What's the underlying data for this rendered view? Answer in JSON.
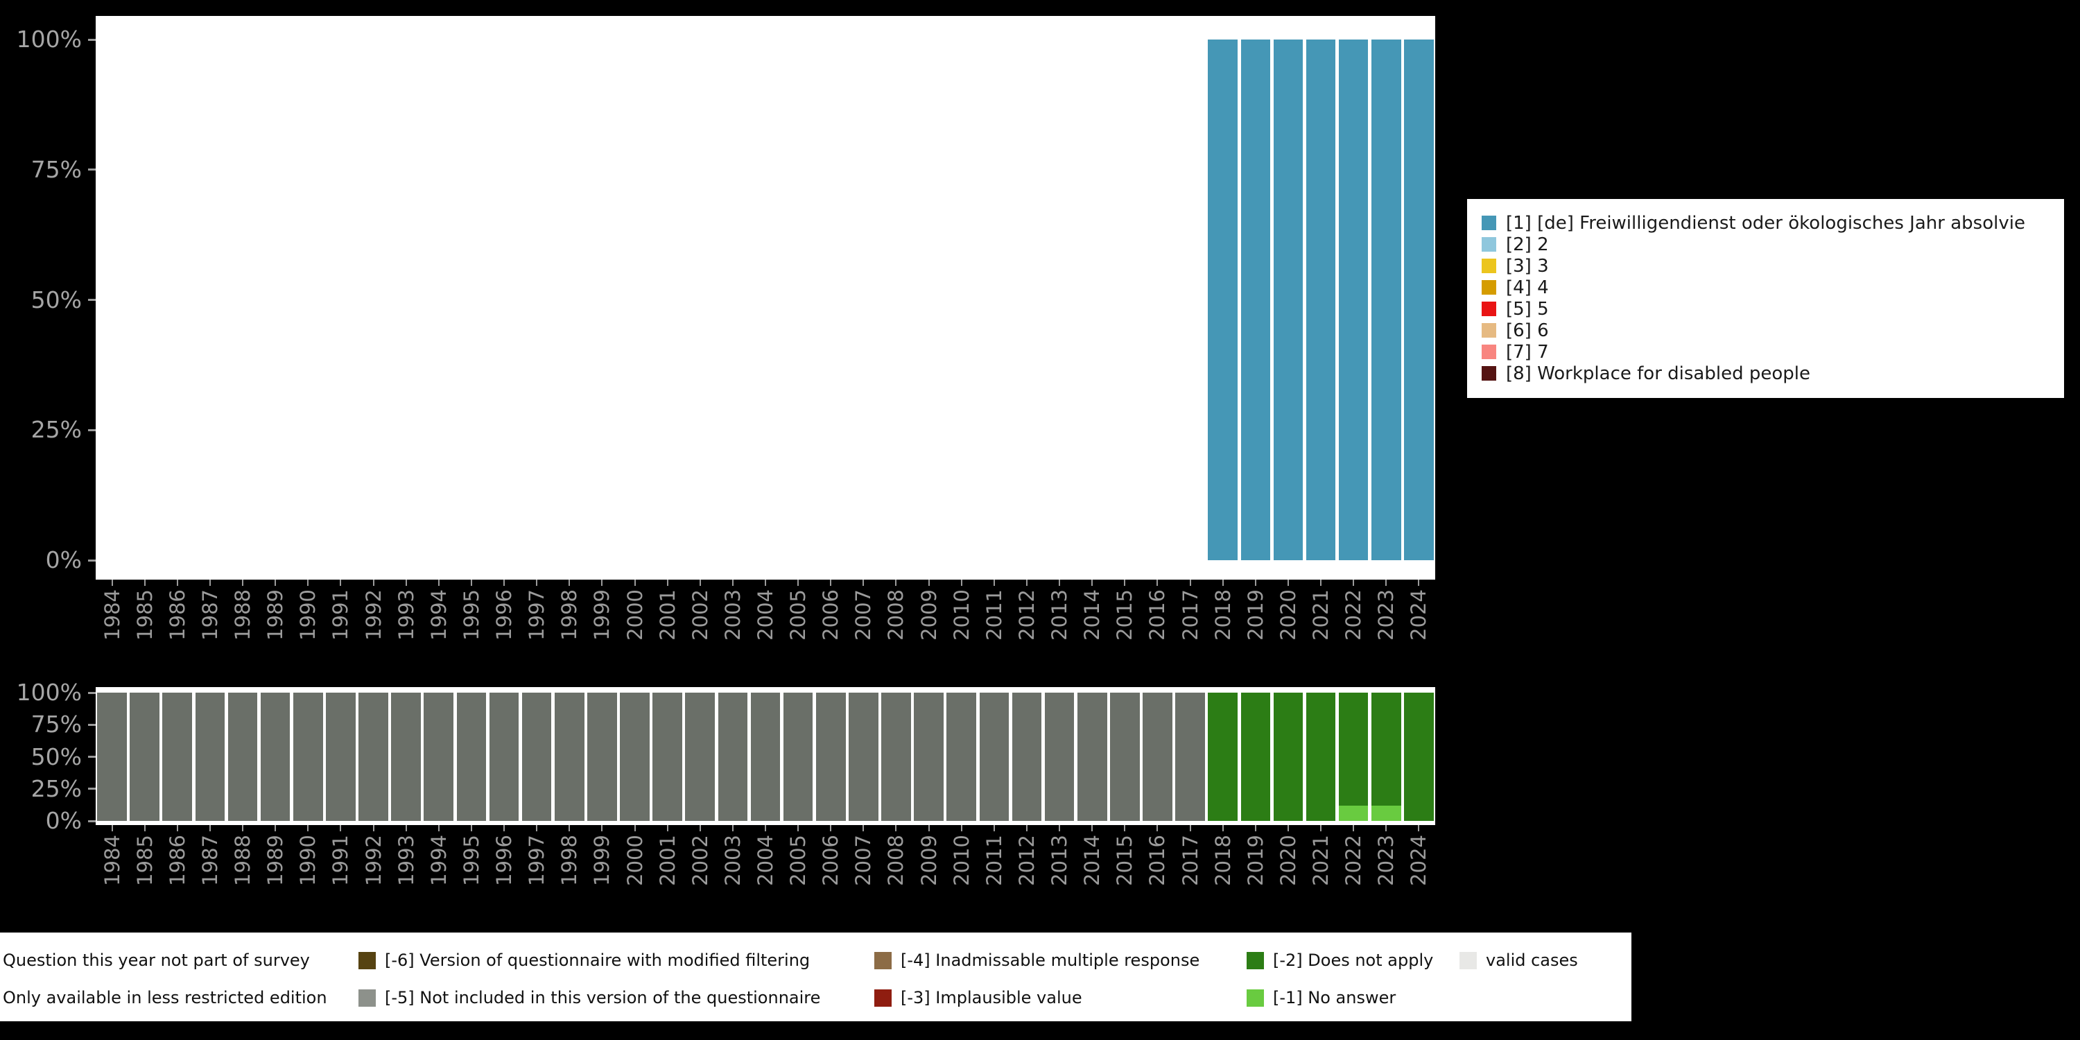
{
  "app": {
    "background": "#000000"
  },
  "axes": {
    "tick_color": "#9b9b9b",
    "y_label_color": "#a6a6a6",
    "x_label_color": "#9b9b9b"
  },
  "chart_data": [
    {
      "name": "frequencies-by-year",
      "type": "bar",
      "stacked": true,
      "grid": false,
      "legend_position": "right",
      "ylim": [
        0,
        100
      ],
      "y_ticks": [
        0,
        25,
        50,
        75,
        100
      ],
      "y_tick_labels": [
        "0%",
        "25%",
        "50%",
        "75%",
        "100%"
      ],
      "x": [
        "1984",
        "1985",
        "1986",
        "1987",
        "1988",
        "1989",
        "1990",
        "1991",
        "1992",
        "1993",
        "1994",
        "1995",
        "1996",
        "1997",
        "1998",
        "1999",
        "2000",
        "2001",
        "2002",
        "2003",
        "2004",
        "2005",
        "2006",
        "2007",
        "2008",
        "2009",
        "2010",
        "2011",
        "2012",
        "2013",
        "2014",
        "2015",
        "2016",
        "2017",
        "2018",
        "2019",
        "2020",
        "2021",
        "2022",
        "2023",
        "2024"
      ],
      "series": [
        {
          "name": "[1] [de] Freiwilligendienst oder ökologisches Jahr absolvie",
          "color": "#4597b6",
          "values": [
            0,
            0,
            0,
            0,
            0,
            0,
            0,
            0,
            0,
            0,
            0,
            0,
            0,
            0,
            0,
            0,
            0,
            0,
            0,
            0,
            0,
            0,
            0,
            0,
            0,
            0,
            0,
            0,
            0,
            0,
            0,
            0,
            0,
            0,
            100,
            100,
            100,
            100,
            100,
            100,
            100
          ]
        },
        {
          "name": "[2] 2",
          "color": "#8fc7dd",
          "values": []
        },
        {
          "name": "[3] 3",
          "color": "#ecc51e",
          "values": []
        },
        {
          "name": "[4] 4",
          "color": "#d59c00",
          "values": []
        },
        {
          "name": "[5] 5",
          "color": "#e91414",
          "values": []
        },
        {
          "name": "[6] 6",
          "color": "#e6ba82",
          "values": []
        },
        {
          "name": "[7] 7",
          "color": "#f8857f",
          "values": []
        },
        {
          "name": "[8] Workplace for disabled people",
          "color": "#551413",
          "values": []
        }
      ]
    },
    {
      "name": "missings-by-year",
      "type": "bar",
      "stacked": true,
      "grid": false,
      "legend_position": "bottom-external",
      "ylim": [
        0,
        100
      ],
      "y_ticks": [
        0,
        25,
        50,
        75,
        100
      ],
      "y_tick_labels": [
        "0%",
        "25%",
        "50%",
        "75%",
        "100%"
      ],
      "x": [
        "1984",
        "1985",
        "1986",
        "1987",
        "1988",
        "1989",
        "1990",
        "1991",
        "1992",
        "1993",
        "1994",
        "1995",
        "1996",
        "1997",
        "1998",
        "1999",
        "2000",
        "2001",
        "2002",
        "2003",
        "2004",
        "2005",
        "2006",
        "2007",
        "2008",
        "2009",
        "2010",
        "2011",
        "2012",
        "2013",
        "2014",
        "2015",
        "2016",
        "2017",
        "2018",
        "2019",
        "2020",
        "2021",
        "2022",
        "2023",
        "2024"
      ],
      "series": [
        {
          "name": "[-1] No answer",
          "color": "#69cb40",
          "values": [
            0,
            0,
            0,
            0,
            0,
            0,
            0,
            0,
            0,
            0,
            0,
            0,
            0,
            0,
            0,
            0,
            0,
            0,
            0,
            0,
            0,
            0,
            0,
            0,
            0,
            0,
            0,
            0,
            0,
            0,
            0,
            0,
            0,
            0,
            0,
            0,
            0,
            0,
            12,
            12,
            0
          ]
        },
        {
          "name": "[-2] Does not apply",
          "color": "#2c7d15",
          "values": [
            0,
            0,
            0,
            0,
            0,
            0,
            0,
            0,
            0,
            0,
            0,
            0,
            0,
            0,
            0,
            0,
            0,
            0,
            0,
            0,
            0,
            0,
            0,
            0,
            0,
            0,
            0,
            0,
            0,
            0,
            0,
            0,
            0,
            0,
            100,
            100,
            100,
            100,
            88,
            88,
            100
          ]
        },
        {
          "name": "Question this year not part of survey",
          "color": "#6a6f68",
          "values": [
            100,
            100,
            100,
            100,
            100,
            100,
            100,
            100,
            100,
            100,
            100,
            100,
            100,
            100,
            100,
            100,
            100,
            100,
            100,
            100,
            100,
            100,
            100,
            100,
            100,
            100,
            100,
            100,
            100,
            100,
            100,
            100,
            100,
            100,
            0,
            0,
            0,
            0,
            0,
            0,
            0
          ]
        }
      ]
    }
  ],
  "missing_legend": {
    "columns": [
      {
        "items": [
          {
            "label": "Question this year not part of survey",
            "color": null
          },
          {
            "label": "Only available in less restricted edition",
            "color": null
          }
        ]
      },
      {
        "items": [
          {
            "label": "[-6] Version of questionnaire with modified filtering",
            "color": "#564312"
          },
          {
            "label": "[-5] Not included in this version of the questionnaire",
            "color": "#8d918b"
          }
        ]
      },
      {
        "items": [
          {
            "label": "[-4] Inadmissable multiple response",
            "color": "#8c6c46"
          },
          {
            "label": "[-3] Implausible value",
            "color": "#8f1d10"
          }
        ]
      },
      {
        "items": [
          {
            "label": "[-2] Does not apply",
            "color": "#2c7d15"
          },
          {
            "label": "[-1] No answer",
            "color": "#69cb40"
          }
        ]
      },
      {
        "items": [
          {
            "label": "valid cases",
            "color": "#e8e8e6"
          }
        ]
      }
    ]
  }
}
